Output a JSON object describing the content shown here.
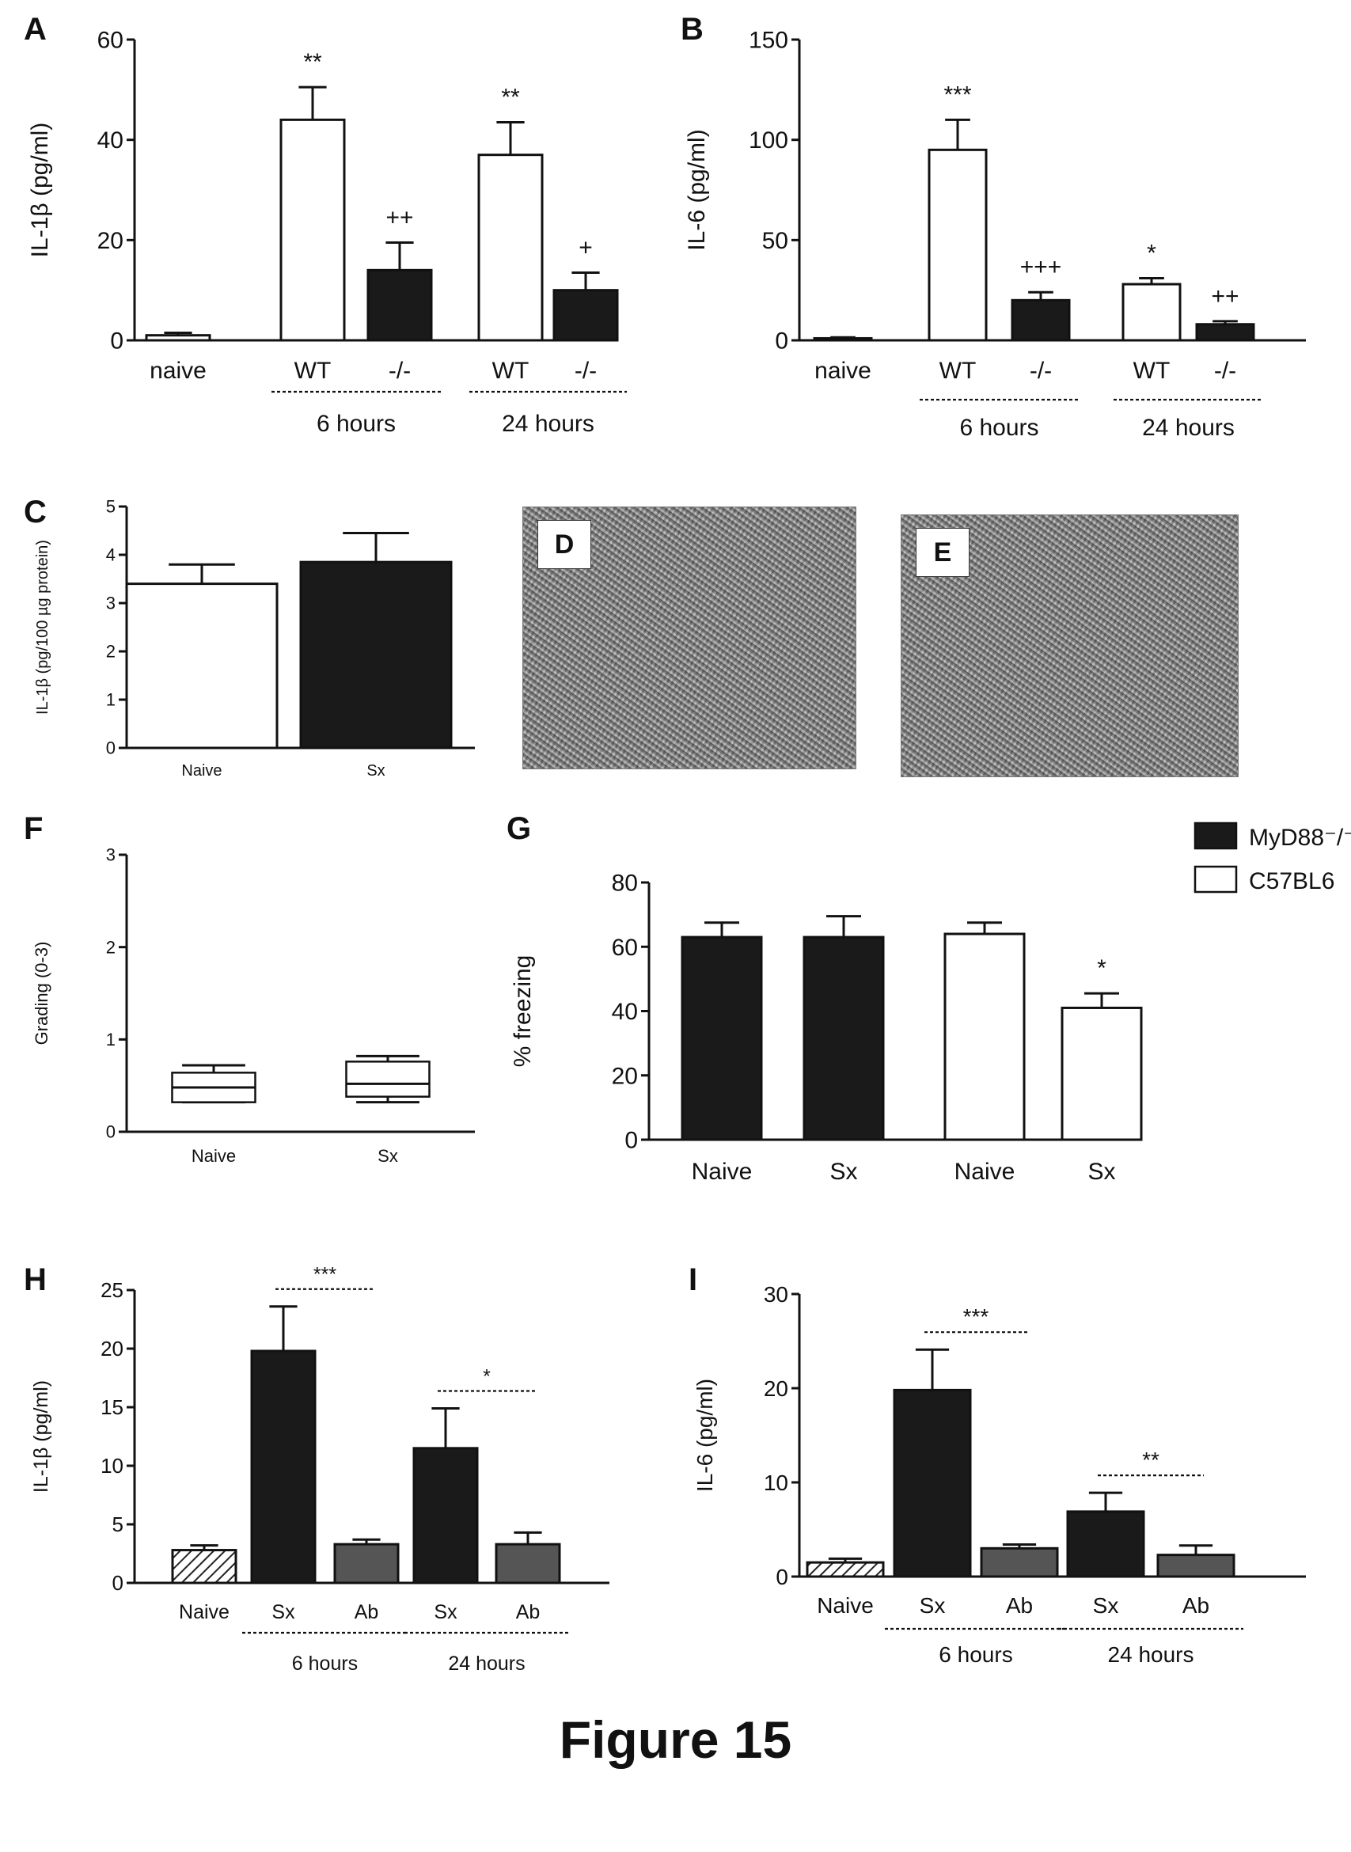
{
  "figure_caption": "Figure 15",
  "micrographs": [
    {
      "letter": "D"
    },
    {
      "letter": "E"
    }
  ],
  "chart_data": [
    {
      "panel": "A",
      "type": "bar",
      "ylabel": "IL-1β (pg/ml)",
      "ylim": [
        0,
        60
      ],
      "yticks": [
        0,
        20,
        40,
        60
      ],
      "categories": [
        "naive",
        "WT",
        "-/-",
        "WT",
        "-/-"
      ],
      "values": [
        1,
        44,
        14,
        37,
        10
      ],
      "errors": [
        0.5,
        6.5,
        5.5,
        6.5,
        3.5
      ],
      "fills": [
        "white",
        "white",
        "black",
        "white",
        "black"
      ],
      "annotations": [
        "",
        "**",
        "++",
        "**",
        "+"
      ],
      "groups": [
        {
          "label": "6 hours",
          "from": 1,
          "to": 2
        },
        {
          "label": "24 hours",
          "from": 3,
          "to": 4
        }
      ]
    },
    {
      "panel": "B",
      "type": "bar",
      "ylabel": "IL-6 (pg/ml)",
      "ylim": [
        0,
        150
      ],
      "yticks": [
        0,
        50,
        100,
        150
      ],
      "categories": [
        "naive",
        "WT",
        "-/-",
        "WT",
        "-/-"
      ],
      "values": [
        1,
        95,
        20,
        28,
        8
      ],
      "errors": [
        0.5,
        15,
        4,
        3,
        1.5
      ],
      "fills": [
        "white",
        "white",
        "black",
        "white",
        "black"
      ],
      "annotations": [
        "",
        "***",
        "+++",
        "*",
        "++"
      ],
      "groups": [
        {
          "label": "6 hours",
          "from": 1,
          "to": 2
        },
        {
          "label": "24 hours",
          "from": 3,
          "to": 4
        }
      ]
    },
    {
      "panel": "C",
      "type": "bar",
      "ylabel": "IL-1β (pg/100 µg protein)",
      "ylim": [
        0,
        5
      ],
      "yticks": [
        0,
        1,
        2,
        3,
        4,
        5
      ],
      "categories": [
        "Naive",
        "Sx"
      ],
      "values": [
        3.4,
        3.85
      ],
      "errors": [
        0.4,
        0.6
      ],
      "fills": [
        "white",
        "black"
      ],
      "annotations": [
        "",
        ""
      ],
      "groups": []
    },
    {
      "panel": "F",
      "type": "box",
      "ylabel": "Grading (0-3)",
      "ylim": [
        0,
        3
      ],
      "yticks": [
        0,
        1,
        2,
        3
      ],
      "categories": [
        "Naive",
        "Sx"
      ],
      "boxes": [
        {
          "min": 0.32,
          "q1": 0.32,
          "median": 0.48,
          "q3": 0.64,
          "max": 0.72
        },
        {
          "min": 0.32,
          "q1": 0.38,
          "median": 0.52,
          "q3": 0.76,
          "max": 0.82
        }
      ]
    },
    {
      "panel": "G",
      "type": "bar",
      "ylabel": "% freezing",
      "ylim": [
        0,
        80
      ],
      "yticks": [
        0,
        20,
        40,
        60,
        80
      ],
      "categories": [
        "Naive",
        "Sx",
        "Naive",
        "Sx"
      ],
      "values": [
        63,
        63,
        64,
        41
      ],
      "errors": [
        4.5,
        6.5,
        3.5,
        4.5
      ],
      "fills": [
        "black",
        "black",
        "white",
        "white"
      ],
      "annotations": [
        "",
        "",
        "",
        "*"
      ],
      "groups": [],
      "legend": [
        {
          "name": "MyD88⁻/⁻",
          "fill": "black"
        },
        {
          "name": "C57BL6",
          "fill": "white"
        }
      ]
    },
    {
      "panel": "H",
      "type": "bar",
      "ylabel": "IL-1β (pg/ml)",
      "ylim": [
        0,
        25
      ],
      "yticks": [
        0,
        5,
        10,
        15,
        20,
        25
      ],
      "categories": [
        "Naive",
        "Sx",
        "Ab",
        "Sx",
        "Ab"
      ],
      "values": [
        2.8,
        19.8,
        3.3,
        11.5,
        3.3
      ],
      "errors": [
        0.4,
        3.8,
        0.4,
        3.4,
        1.0
      ],
      "fills": [
        "hatch",
        "black",
        "gray",
        "black",
        "gray"
      ],
      "annotations": [],
      "brackets": [
        {
          "from": 1,
          "to": 2,
          "label": "***"
        },
        {
          "from": 3,
          "to": 4,
          "label": "*"
        }
      ],
      "groups": [
        {
          "label": "6 hours",
          "from": 1,
          "to": 2
        },
        {
          "label": "24 hours",
          "from": 3,
          "to": 4
        }
      ]
    },
    {
      "panel": "I",
      "type": "bar",
      "ylabel": "IL-6 (pg/ml)",
      "ylim": [
        0,
        30
      ],
      "yticks": [
        0,
        10,
        20,
        30
      ],
      "categories": [
        "Naive",
        "Sx",
        "Ab",
        "Sx",
        "Ab"
      ],
      "values": [
        1.5,
        19.8,
        3.0,
        6.9,
        2.3
      ],
      "errors": [
        0.4,
        4.3,
        0.4,
        2.0,
        1.0
      ],
      "fills": [
        "hatch",
        "black",
        "gray",
        "black",
        "gray"
      ],
      "annotations": [],
      "brackets": [
        {
          "from": 1,
          "to": 2,
          "label": "***"
        },
        {
          "from": 3,
          "to": 4,
          "label": "**"
        }
      ],
      "groups": [
        {
          "label": "6 hours",
          "from": 1,
          "to": 2
        },
        {
          "label": "24 hours",
          "from": 3,
          "to": 4
        }
      ]
    }
  ]
}
